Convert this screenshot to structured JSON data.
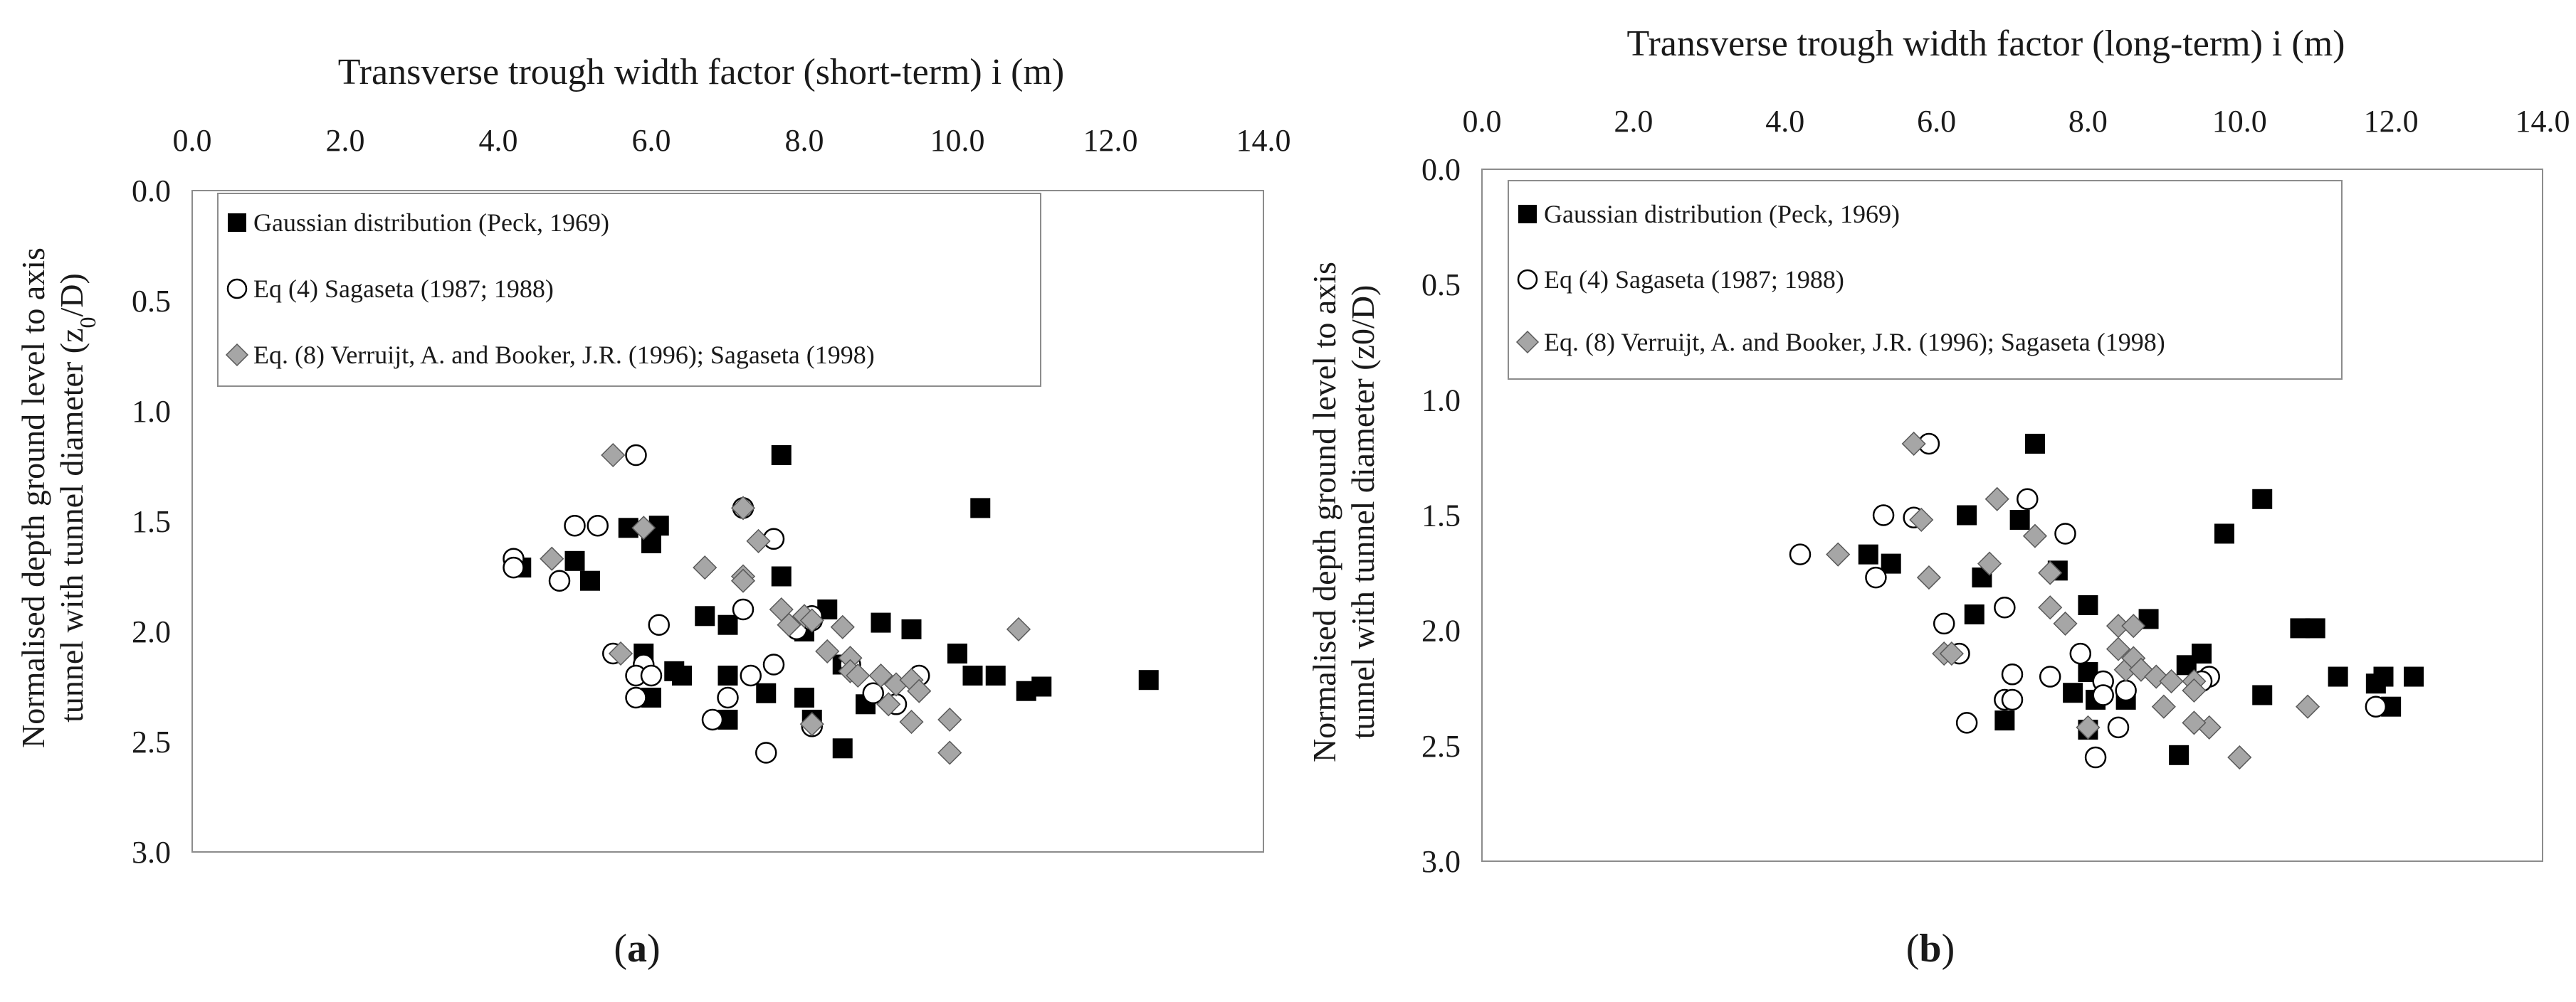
{
  "chart_data": [
    {
      "type": "scatter",
      "panel_label": "a",
      "title": "Transverse trough width factor (short-term) i (m)",
      "ylabel_line1": "Normalised depth ground level to axis",
      "ylabel_line2_pre": "tunnel  with tunnel diameter (z",
      "ylabel_line2_sub": "0",
      "ylabel_line2_post": "/D)",
      "xlim": [
        0,
        14
      ],
      "ylim": [
        0,
        3
      ],
      "x_ticks": [
        "0.0",
        "2.0",
        "4.0",
        "6.0",
        "8.0",
        "10.0",
        "12.0",
        "14.0"
      ],
      "y_ticks": [
        "0.0",
        "0.5",
        "1.0",
        "1.5",
        "2.0",
        "2.5",
        "3.0"
      ],
      "x_axis_position": "top",
      "y_axis_inverted": true,
      "legend_position": "top-left",
      "series": [
        {
          "name": "Gaussian distribution (Peck, 1969)",
          "marker": "square-filled",
          "color": "#000000",
          "points": [
            [
              7.7,
              1.2
            ],
            [
              10.3,
              1.44
            ],
            [
              5.7,
              1.53
            ],
            [
              6.1,
              1.52
            ],
            [
              4.3,
              1.71
            ],
            [
              5.0,
              1.68
            ],
            [
              5.2,
              1.77
            ],
            [
              6.0,
              1.6
            ],
            [
              7.7,
              1.75
            ],
            [
              6.7,
              1.93
            ],
            [
              7.0,
              1.97
            ],
            [
              8.3,
              1.9
            ],
            [
              9.0,
              1.96
            ],
            [
              9.4,
              1.99
            ],
            [
              8.0,
              2.0
            ],
            [
              5.9,
              2.1
            ],
            [
              10.0,
              2.1
            ],
            [
              6.3,
              2.18
            ],
            [
              6.4,
              2.2
            ],
            [
              7.0,
              2.2
            ],
            [
              10.2,
              2.2
            ],
            [
              10.5,
              2.2
            ],
            [
              11.1,
              2.25
            ],
            [
              10.9,
              2.27
            ],
            [
              12.5,
              2.22
            ],
            [
              7.5,
              2.28
            ],
            [
              6.0,
              2.3
            ],
            [
              8.0,
              2.3
            ],
            [
              8.5,
              2.15
            ],
            [
              8.8,
              2.33
            ],
            [
              7.0,
              2.4
            ],
            [
              8.1,
              2.4
            ],
            [
              8.5,
              2.53
            ]
          ]
        },
        {
          "name": "Eq (4) Sagaseta (1987; 1988)",
          "marker": "circle-open",
          "color": "#000000",
          "points": [
            [
              5.8,
              1.2
            ],
            [
              5.0,
              1.52
            ],
            [
              5.3,
              1.52
            ],
            [
              4.2,
              1.67
            ],
            [
              4.2,
              1.71
            ],
            [
              4.8,
              1.77
            ],
            [
              7.2,
              1.44
            ],
            [
              7.6,
              1.58
            ],
            [
              6.1,
              1.97
            ],
            [
              7.2,
              1.9
            ],
            [
              7.9,
              1.99
            ],
            [
              8.1,
              1.95
            ],
            [
              8.1,
              1.93
            ],
            [
              5.5,
              2.1
            ],
            [
              5.9,
              2.15
            ],
            [
              5.8,
              2.2
            ],
            [
              6.0,
              2.2
            ],
            [
              7.3,
              2.2
            ],
            [
              7.6,
              2.15
            ],
            [
              5.8,
              2.3
            ],
            [
              7.0,
              2.3
            ],
            [
              6.8,
              2.4
            ],
            [
              7.5,
              2.55
            ],
            [
              8.6,
              2.15
            ],
            [
              9.5,
              2.2
            ],
            [
              8.9,
              2.28
            ],
            [
              8.1,
              2.43
            ],
            [
              9.2,
              2.33
            ]
          ]
        },
        {
          "name": "Eq. (8) Verruijt, A. and Booker, J.R. (1996); Sagaseta (1998)",
          "marker": "diamond-gray",
          "color": "#a6a6a6",
          "points": [
            [
              5.5,
              1.2
            ],
            [
              7.2,
              1.44
            ],
            [
              5.9,
              1.53
            ],
            [
              7.4,
              1.59
            ],
            [
              4.7,
              1.67
            ],
            [
              6.7,
              1.71
            ],
            [
              7.2,
              1.75
            ],
            [
              7.2,
              1.77
            ],
            [
              7.7,
              1.9
            ],
            [
              7.8,
              1.97
            ],
            [
              8.0,
              1.93
            ],
            [
              8.1,
              1.95
            ],
            [
              8.5,
              1.98
            ],
            [
              8.3,
              2.09
            ],
            [
              8.6,
              2.12
            ],
            [
              8.6,
              2.18
            ],
            [
              8.7,
              2.2
            ],
            [
              9.0,
              2.2
            ],
            [
              9.2,
              2.24
            ],
            [
              9.4,
              2.22
            ],
            [
              9.5,
              2.27
            ],
            [
              9.1,
              2.33
            ],
            [
              9.4,
              2.41
            ],
            [
              9.9,
              2.4
            ],
            [
              9.9,
              2.55
            ],
            [
              8.1,
              2.42
            ],
            [
              10.8,
              1.99
            ],
            [
              5.6,
              2.1
            ]
          ]
        }
      ]
    },
    {
      "type": "scatter",
      "panel_label": "b",
      "title": "Transverse trough width factor (long-term) i (m)",
      "ylabel_line1": "Normalised depth ground level to axis",
      "ylabel_line2_pre": "tunnel  with tunnel diameter (z0/D)",
      "ylabel_line2_sub": "",
      "ylabel_line2_post": "",
      "xlim": [
        0,
        14
      ],
      "ylim": [
        0,
        3
      ],
      "x_ticks": [
        "0.0",
        "2.0",
        "4.0",
        "6.0",
        "8.0",
        "10.0",
        "12.0",
        "14.0"
      ],
      "y_ticks": [
        "0.0",
        "0.5",
        "1.0",
        "1.5",
        "2.0",
        "2.5",
        "3.0"
      ],
      "x_axis_position": "top",
      "y_axis_inverted": true,
      "legend_position": "top-left",
      "series": [
        {
          "name": "Gaussian distribution (Peck, 1969)",
          "marker": "square-filled",
          "color": "#000000",
          "points": [
            [
              7.3,
              1.19
            ],
            [
              10.3,
              1.43
            ],
            [
              9.8,
              1.58
            ],
            [
              6.4,
              1.5
            ],
            [
              7.1,
              1.52
            ],
            [
              5.1,
              1.67
            ],
            [
              5.4,
              1.71
            ],
            [
              6.6,
              1.77
            ],
            [
              7.6,
              1.74
            ],
            [
              8.0,
              1.89
            ],
            [
              6.5,
              1.93
            ],
            [
              8.8,
              1.95
            ],
            [
              10.8,
              1.99
            ],
            [
              11.0,
              1.99
            ],
            [
              8.0,
              2.18
            ],
            [
              9.5,
              2.1
            ],
            [
              9.3,
              2.15
            ],
            [
              7.8,
              2.27
            ],
            [
              8.1,
              2.3
            ],
            [
              8.5,
              2.3
            ],
            [
              11.3,
              2.2
            ],
            [
              11.9,
              2.2
            ],
            [
              12.3,
              2.2
            ],
            [
              11.8,
              2.23
            ],
            [
              12.0,
              2.33
            ],
            [
              10.3,
              2.28
            ],
            [
              6.9,
              2.39
            ],
            [
              8.0,
              2.43
            ],
            [
              9.2,
              2.54
            ]
          ]
        },
        {
          "name": "Eq (4) Sagaseta (1987; 1988)",
          "marker": "circle-open",
          "color": "#000000",
          "points": [
            [
              5.9,
              1.19
            ],
            [
              5.7,
              1.51
            ],
            [
              5.3,
              1.5
            ],
            [
              4.2,
              1.67
            ],
            [
              5.2,
              1.77
            ],
            [
              7.2,
              1.43
            ],
            [
              7.7,
              1.58
            ],
            [
              6.1,
              1.97
            ],
            [
              6.9,
              1.9
            ],
            [
              7.9,
              2.1
            ],
            [
              6.3,
              2.1
            ],
            [
              7.0,
              2.19
            ],
            [
              7.5,
              2.2
            ],
            [
              6.9,
              2.3
            ],
            [
              7.0,
              2.3
            ],
            [
              8.2,
              2.22
            ],
            [
              9.6,
              2.2
            ],
            [
              9.5,
              2.22
            ],
            [
              8.5,
              2.26
            ],
            [
              8.2,
              2.28
            ],
            [
              6.4,
              2.4
            ],
            [
              8.4,
              2.42
            ],
            [
              8.1,
              2.55
            ],
            [
              11.8,
              2.33
            ]
          ]
        },
        {
          "name": "Eq. (8) Verruijt, A. and Booker, J.R. (1996); Sagaseta (1998)",
          "marker": "diamond-gray",
          "color": "#a6a6a6",
          "points": [
            [
              5.7,
              1.19
            ],
            [
              6.8,
              1.43
            ],
            [
              5.8,
              1.52
            ],
            [
              7.3,
              1.59
            ],
            [
              4.7,
              1.67
            ],
            [
              5.9,
              1.77
            ],
            [
              6.7,
              1.71
            ],
            [
              7.5,
              1.75
            ],
            [
              7.5,
              1.9
            ],
            [
              7.7,
              1.97
            ],
            [
              8.4,
              1.98
            ],
            [
              8.6,
              1.98
            ],
            [
              8.4,
              2.08
            ],
            [
              8.5,
              2.17
            ],
            [
              8.6,
              2.12
            ],
            [
              8.7,
              2.17
            ],
            [
              8.9,
              2.2
            ],
            [
              9.1,
              2.22
            ],
            [
              9.4,
              2.22
            ],
            [
              9.0,
              2.33
            ],
            [
              9.4,
              2.26
            ],
            [
              9.6,
              2.42
            ],
            [
              9.4,
              2.4
            ],
            [
              10.0,
              2.55
            ],
            [
              8.0,
              2.42
            ],
            [
              10.9,
              2.33
            ],
            [
              6.1,
              2.1
            ],
            [
              6.2,
              2.1
            ]
          ]
        }
      ]
    }
  ]
}
